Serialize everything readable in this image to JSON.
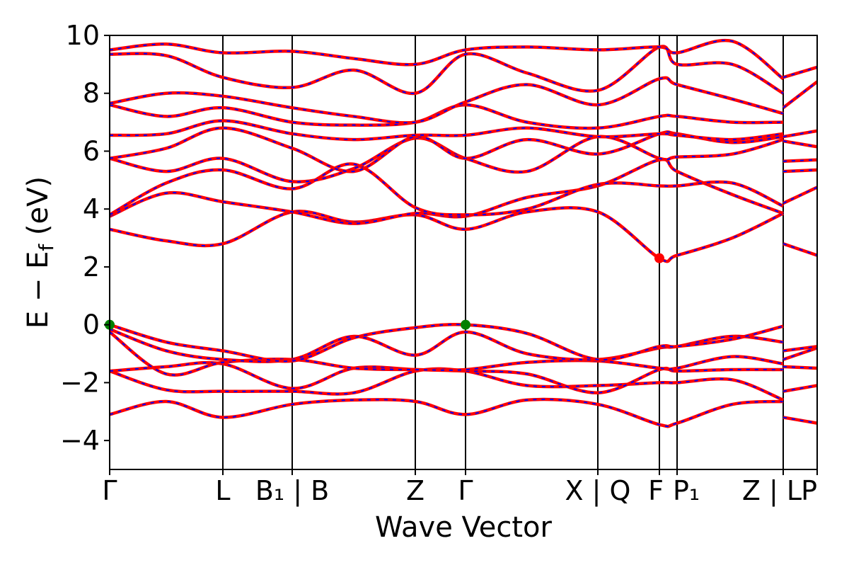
{
  "chart_data": {
    "type": "line",
    "title": "",
    "xlabel": "Wave Vector",
    "ylabel": "E − E",
    "ylabel_subscript": "f",
    "ylabel_unit": " (eV)",
    "ylim": [
      -5,
      10
    ],
    "yticks": [
      -4,
      -2,
      0,
      2,
      4,
      6,
      8,
      10
    ],
    "ytick_labels": [
      "−4",
      "−2",
      "0",
      "2",
      "4",
      "6",
      "8",
      "10"
    ],
    "xlim": [
      0,
      10
    ],
    "kpoints": [
      {
        "x": 0.0,
        "label": "Γ"
      },
      {
        "x": 1.6,
        "label": "L"
      },
      {
        "x": 2.58,
        "label": "B₁ | B"
      },
      {
        "x": 4.32,
        "label": "Z"
      },
      {
        "x": 5.03,
        "label": "Γ"
      },
      {
        "x": 6.9,
        "label": "X | Q"
      },
      {
        "x": 7.77,
        "label": "F"
      },
      {
        "x": 8.02,
        "label": "P₁"
      },
      {
        "x": 9.52,
        "label": "Z | L"
      },
      {
        "x": 10.0,
        "label": "P"
      }
    ],
    "colors": {
      "band": "#ff0000",
      "band_dash": "#0000ff",
      "vbm_marker": "#008000",
      "cbm_marker": "#ff0000",
      "vline": "#000000"
    },
    "band_style": "red solid with blue dashed overlay",
    "markers": [
      {
        "name": "VBM",
        "color": "#008000",
        "points": [
          [
            0.0,
            0.0
          ],
          [
            5.03,
            0.0
          ]
        ]
      },
      {
        "name": "CBM",
        "color": "#ff0000",
        "points": [
          [
            7.77,
            2.3
          ]
        ]
      }
    ],
    "series": [
      {
        "values": [
          [
            0,
            -3.1
          ],
          [
            0.8,
            -2.65
          ],
          [
            1.6,
            -3.2
          ],
          [
            2.58,
            -2.75
          ],
          [
            3.45,
            -2.6
          ],
          [
            4.32,
            -2.65
          ],
          [
            5.03,
            -3.1
          ],
          [
            5.9,
            -2.6
          ],
          [
            6.9,
            -2.75
          ],
          [
            7.77,
            -3.45
          ],
          [
            8.02,
            -3.4
          ],
          [
            8.8,
            -2.75
          ],
          [
            9.52,
            -2.65
          ]
        ]
      },
      {
        "values": [
          [
            0,
            -1.6
          ],
          [
            0.8,
            -2.25
          ],
          [
            1.6,
            -2.3
          ],
          [
            2.58,
            -2.3
          ],
          [
            3.45,
            -2.35
          ],
          [
            4.32,
            -1.6
          ],
          [
            5.03,
            -1.6
          ],
          [
            5.9,
            -2.1
          ],
          [
            6.9,
            -2.1
          ],
          [
            7.77,
            -2.0
          ],
          [
            8.02,
            -2.0
          ],
          [
            8.8,
            -1.9
          ],
          [
            9.52,
            -2.6
          ]
        ]
      },
      {
        "values": [
          [
            0,
            -1.6
          ],
          [
            0.8,
            -1.45
          ],
          [
            1.6,
            -1.35
          ],
          [
            2.58,
            -2.2
          ],
          [
            3.45,
            -1.5
          ],
          [
            4.32,
            -1.55
          ],
          [
            5.03,
            -1.6
          ],
          [
            5.9,
            -1.7
          ],
          [
            6.9,
            -2.35
          ],
          [
            7.77,
            -1.55
          ],
          [
            8.02,
            -1.6
          ],
          [
            8.8,
            -1.55
          ],
          [
            9.52,
            -1.55
          ]
        ]
      },
      {
        "values": [
          [
            0,
            -0.25
          ],
          [
            0.8,
            -1.7
          ],
          [
            1.6,
            -1.3
          ],
          [
            2.58,
            -1.2
          ],
          [
            3.45,
            -1.5
          ],
          [
            4.32,
            -1.55
          ],
          [
            5.03,
            -1.55
          ],
          [
            5.9,
            -1.3
          ],
          [
            6.9,
            -1.25
          ],
          [
            7.77,
            -1.5
          ],
          [
            8.02,
            -1.5
          ],
          [
            8.8,
            -1.1
          ],
          [
            9.52,
            -1.35
          ]
        ]
      },
      {
        "values": [
          [
            0,
            -0.15
          ],
          [
            0.8,
            -0.9
          ],
          [
            1.6,
            -1.2
          ],
          [
            2.58,
            -1.2
          ],
          [
            3.45,
            -0.4
          ],
          [
            4.32,
            -1.05
          ],
          [
            5.03,
            -0.25
          ],
          [
            5.9,
            -1.0
          ],
          [
            6.9,
            -1.2
          ],
          [
            7.77,
            -0.8
          ],
          [
            8.02,
            -0.75
          ],
          [
            8.8,
            -0.4
          ],
          [
            9.52,
            -0.6
          ]
        ]
      },
      {
        "values": [
          [
            0,
            0.0
          ],
          [
            0.8,
            -0.6
          ],
          [
            1.6,
            -0.9
          ],
          [
            2.58,
            -1.25
          ],
          [
            3.45,
            -0.45
          ],
          [
            4.32,
            -0.1
          ],
          [
            5.03,
            0.0
          ],
          [
            5.9,
            -0.3
          ],
          [
            6.9,
            -1.2
          ],
          [
            7.77,
            -0.75
          ],
          [
            8.02,
            -0.75
          ],
          [
            8.8,
            -0.5
          ],
          [
            9.52,
            -0.05
          ]
        ]
      },
      {
        "values": [
          [
            0,
            3.3
          ],
          [
            0.8,
            2.9
          ],
          [
            1.6,
            2.8
          ],
          [
            2.58,
            3.9
          ],
          [
            3.45,
            3.55
          ],
          [
            4.32,
            3.8
          ],
          [
            5.03,
            3.3
          ],
          [
            5.9,
            3.9
          ],
          [
            6.9,
            3.9
          ],
          [
            7.77,
            2.3
          ],
          [
            8.02,
            2.4
          ],
          [
            8.8,
            3.0
          ],
          [
            9.52,
            3.85
          ]
        ]
      },
      {
        "values": [
          [
            0,
            3.75
          ],
          [
            0.8,
            4.55
          ],
          [
            1.6,
            4.25
          ],
          [
            2.58,
            3.9
          ],
          [
            3.45,
            3.5
          ],
          [
            4.32,
            3.85
          ],
          [
            5.03,
            3.75
          ],
          [
            5.9,
            4.4
          ],
          [
            6.9,
            4.8
          ],
          [
            7.77,
            5.7
          ],
          [
            8.02,
            5.3
          ],
          [
            8.8,
            4.5
          ],
          [
            9.52,
            3.85
          ]
        ]
      },
      {
        "values": [
          [
            0,
            3.8
          ],
          [
            0.8,
            4.9
          ],
          [
            1.6,
            5.35
          ],
          [
            2.58,
            4.7
          ],
          [
            3.45,
            5.55
          ],
          [
            4.32,
            4.05
          ],
          [
            5.03,
            3.8
          ],
          [
            5.9,
            4.0
          ],
          [
            6.9,
            4.85
          ],
          [
            7.77,
            4.8
          ],
          [
            8.02,
            4.8
          ],
          [
            8.8,
            4.9
          ],
          [
            9.52,
            4.1
          ]
        ]
      },
      {
        "values": [
          [
            0,
            5.75
          ],
          [
            0.8,
            5.3
          ],
          [
            1.6,
            5.75
          ],
          [
            2.58,
            4.95
          ],
          [
            3.45,
            5.4
          ],
          [
            4.32,
            6.45
          ],
          [
            5.03,
            5.75
          ],
          [
            5.9,
            5.3
          ],
          [
            6.9,
            6.5
          ],
          [
            7.77,
            5.75
          ],
          [
            8.02,
            5.8
          ],
          [
            8.8,
            5.9
          ],
          [
            9.52,
            6.4
          ]
        ]
      },
      {
        "values": [
          [
            0,
            5.75
          ],
          [
            0.8,
            6.1
          ],
          [
            1.6,
            6.8
          ],
          [
            2.58,
            6.1
          ],
          [
            3.45,
            5.3
          ],
          [
            4.32,
            6.5
          ],
          [
            5.03,
            5.75
          ],
          [
            5.9,
            6.4
          ],
          [
            6.9,
            5.9
          ],
          [
            7.77,
            6.6
          ],
          [
            8.02,
            6.6
          ],
          [
            8.8,
            6.3
          ],
          [
            9.52,
            6.5
          ]
        ]
      },
      {
        "values": [
          [
            0,
            6.55
          ],
          [
            0.8,
            6.6
          ],
          [
            1.6,
            7.05
          ],
          [
            2.58,
            6.6
          ],
          [
            3.45,
            6.4
          ],
          [
            4.32,
            6.55
          ],
          [
            5.03,
            6.55
          ],
          [
            5.9,
            6.8
          ],
          [
            6.9,
            6.5
          ],
          [
            7.77,
            6.6
          ],
          [
            8.02,
            6.55
          ],
          [
            8.8,
            6.4
          ],
          [
            9.52,
            6.6
          ]
        ]
      },
      {
        "values": [
          [
            0,
            7.6
          ],
          [
            0.8,
            7.2
          ],
          [
            1.6,
            7.5
          ],
          [
            2.58,
            7.0
          ],
          [
            3.45,
            6.9
          ],
          [
            4.32,
            7.0
          ],
          [
            5.03,
            7.6
          ],
          [
            5.9,
            7.0
          ],
          [
            6.9,
            6.8
          ],
          [
            7.77,
            7.2
          ],
          [
            8.02,
            7.2
          ],
          [
            8.8,
            7.0
          ],
          [
            9.52,
            7.0
          ]
        ]
      },
      {
        "values": [
          [
            0,
            7.65
          ],
          [
            0.8,
            8.0
          ],
          [
            1.6,
            7.9
          ],
          [
            2.58,
            7.5
          ],
          [
            3.45,
            7.2
          ],
          [
            4.32,
            7.0
          ],
          [
            5.03,
            7.7
          ],
          [
            5.9,
            8.3
          ],
          [
            6.9,
            7.6
          ],
          [
            7.77,
            8.5
          ],
          [
            8.02,
            8.3
          ],
          [
            8.8,
            7.8
          ],
          [
            9.52,
            7.3
          ]
        ]
      },
      {
        "values": [
          [
            0,
            9.35
          ],
          [
            0.8,
            9.3
          ],
          [
            1.6,
            8.55
          ],
          [
            2.58,
            8.2
          ],
          [
            3.45,
            8.8
          ],
          [
            4.32,
            8.0
          ],
          [
            5.03,
            9.35
          ],
          [
            5.9,
            8.7
          ],
          [
            6.9,
            8.1
          ],
          [
            7.77,
            9.6
          ],
          [
            8.02,
            9.0
          ],
          [
            8.8,
            9.0
          ],
          [
            9.52,
            8.0
          ]
        ]
      },
      {
        "values": [
          [
            0,
            9.5
          ],
          [
            0.8,
            9.7
          ],
          [
            1.6,
            9.4
          ],
          [
            2.58,
            9.45
          ],
          [
            3.45,
            9.2
          ],
          [
            4.32,
            9.0
          ],
          [
            5.03,
            9.5
          ],
          [
            5.9,
            9.6
          ],
          [
            6.9,
            9.5
          ],
          [
            7.77,
            9.6
          ],
          [
            8.02,
            9.4
          ],
          [
            8.8,
            9.8
          ],
          [
            9.52,
            8.5
          ]
        ]
      },
      {
        "values": [
          [
            9.52,
            2.8
          ],
          [
            10.0,
            2.4
          ]
        ]
      },
      {
        "values": [
          [
            9.52,
            4.2
          ],
          [
            10.0,
            4.75
          ]
        ]
      },
      {
        "values": [
          [
            9.52,
            5.3
          ],
          [
            10.0,
            5.35
          ]
        ]
      },
      {
        "values": [
          [
            9.52,
            5.65
          ],
          [
            10.0,
            5.7
          ]
        ]
      },
      {
        "values": [
          [
            9.52,
            6.35
          ],
          [
            10.0,
            6.15
          ]
        ]
      },
      {
        "values": [
          [
            9.52,
            6.5
          ],
          [
            10.0,
            6.7
          ]
        ]
      },
      {
        "values": [
          [
            9.52,
            7.5
          ],
          [
            10.0,
            8.4
          ]
        ]
      },
      {
        "values": [
          [
            9.52,
            8.55
          ],
          [
            10.0,
            8.9
          ]
        ]
      },
      {
        "values": [
          [
            9.52,
            -3.2
          ],
          [
            10.0,
            -3.4
          ]
        ]
      },
      {
        "values": [
          [
            9.52,
            -2.3
          ],
          [
            10.0,
            -2.1
          ]
        ]
      },
      {
        "values": [
          [
            9.52,
            -1.45
          ],
          [
            10.0,
            -1.5
          ]
        ]
      },
      {
        "values": [
          [
            9.52,
            -1.2
          ],
          [
            10.0,
            -0.8
          ]
        ]
      },
      {
        "values": [
          [
            9.52,
            -0.9
          ],
          [
            10.0,
            -0.75
          ]
        ]
      }
    ]
  }
}
